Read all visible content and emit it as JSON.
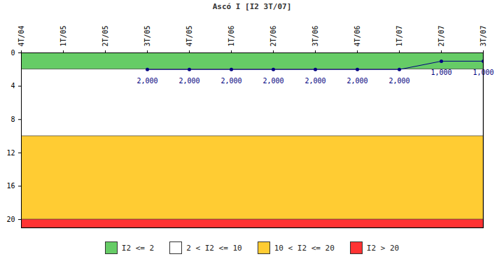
{
  "chart_data": {
    "type": "line",
    "title": "Ascó I [I2 3T/07]",
    "categories": [
      "4T/04",
      "1T/05",
      "2T/05",
      "3T/05",
      "4T/05",
      "1T/06",
      "2T/06",
      "3T/06",
      "4T/06",
      "1T/07",
      "2T/07",
      "3T/07"
    ],
    "values": [
      null,
      null,
      null,
      2,
      2,
      2,
      2,
      2,
      2,
      2,
      1,
      1
    ],
    "value_labels": [
      null,
      null,
      null,
      "2,000",
      "2,000",
      "2,000",
      "2,000",
      "2,000",
      "2,000",
      "2,000",
      "1,000",
      "1,000"
    ],
    "color": "#000080",
    "marker": "circle",
    "data_labels": true,
    "ylim": [
      0,
      21
    ],
    "yticks": [
      0,
      4,
      8,
      12,
      16,
      20
    ],
    "grid": false,
    "legend": "bottom",
    "bands": [
      {
        "name": "I2 <= 2",
        "from": 0,
        "to": 2,
        "color": "#66cc66"
      },
      {
        "name": "2 < I2 <= 10",
        "from": 2,
        "to": 10,
        "color": "#ffffff"
      },
      {
        "name": "10 < I2 <= 20",
        "from": 10,
        "to": 20,
        "color": "#ffcc33"
      },
      {
        "name": "I2 > 20",
        "from": 20,
        "to": 21,
        "color": "#ff3333"
      }
    ]
  }
}
